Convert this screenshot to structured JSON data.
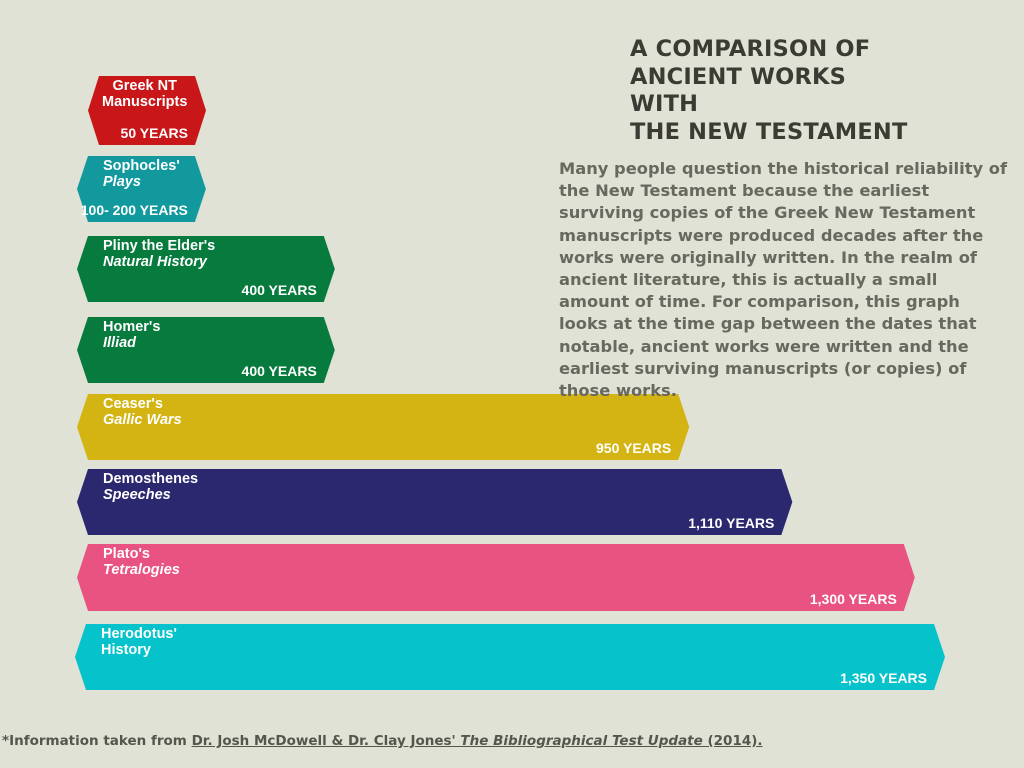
{
  "title_lines": [
    "A COMPARISON OF",
    "ANCIENT WORKS",
    "WITH",
    "THE NEW TESTAMENT"
  ],
  "description": "Many people question the historical reliability of the New Testament because the earliest surviving copies of the Greek New Testament manuscripts were produced decades after the works were originally written. In the realm of ancient literature, this is actually a small amount of time. For comparison, this graph looks at the time gap between the dates that notable, ancient works were written and the earliest surviving manuscripts (or copies) of those works.",
  "footnote": {
    "marker": "*",
    "prefix": "Information taken from ",
    "authors": "Dr. Josh McDowell & Dr. Clay Jones' ",
    "book": "The Bibliographical Test Update",
    "year": " (2014)."
  },
  "chart_data": {
    "type": "bar",
    "orientation": "horizontal",
    "unit": "years",
    "categories": [
      {
        "line1": "Greek NT",
        "line2": "Manuscripts",
        "line2_italic": false
      },
      {
        "line1": "Sophocles'",
        "line2": "Plays",
        "line2_italic": true
      },
      {
        "line1": "Pliny the Elder's",
        "line2": "Natural History",
        "line2_italic": true
      },
      {
        "line1": "Homer's",
        "line2": "Illiad",
        "line2_italic": true
      },
      {
        "line1": "Ceaser's",
        "line2": "Gallic Wars",
        "line2_italic": true
      },
      {
        "line1": "Demosthenes",
        "line2": "Speeches",
        "line2_italic": true
      },
      {
        "line1": "Plato's",
        "line2": "Tetralogies",
        "line2_italic": true
      },
      {
        "line1": "Herodotus'",
        "line2": "History",
        "line2_italic": false
      }
    ],
    "values": [
      50,
      200,
      400,
      400,
      950,
      1110,
      1300,
      1350
    ],
    "value_labels": [
      "50 YEARS",
      "100- 200 YEARS",
      "400 YEARS",
      "400 YEARS",
      "950 YEARS",
      "1,110 YEARS",
      "1,300 YEARS",
      "1,350 YEARS"
    ],
    "colors": [
      "#c91618",
      "#11999e",
      "#077a3d",
      "#077a3d",
      "#d4b413",
      "#2b2870",
      "#e95382",
      "#06c3cb"
    ]
  }
}
